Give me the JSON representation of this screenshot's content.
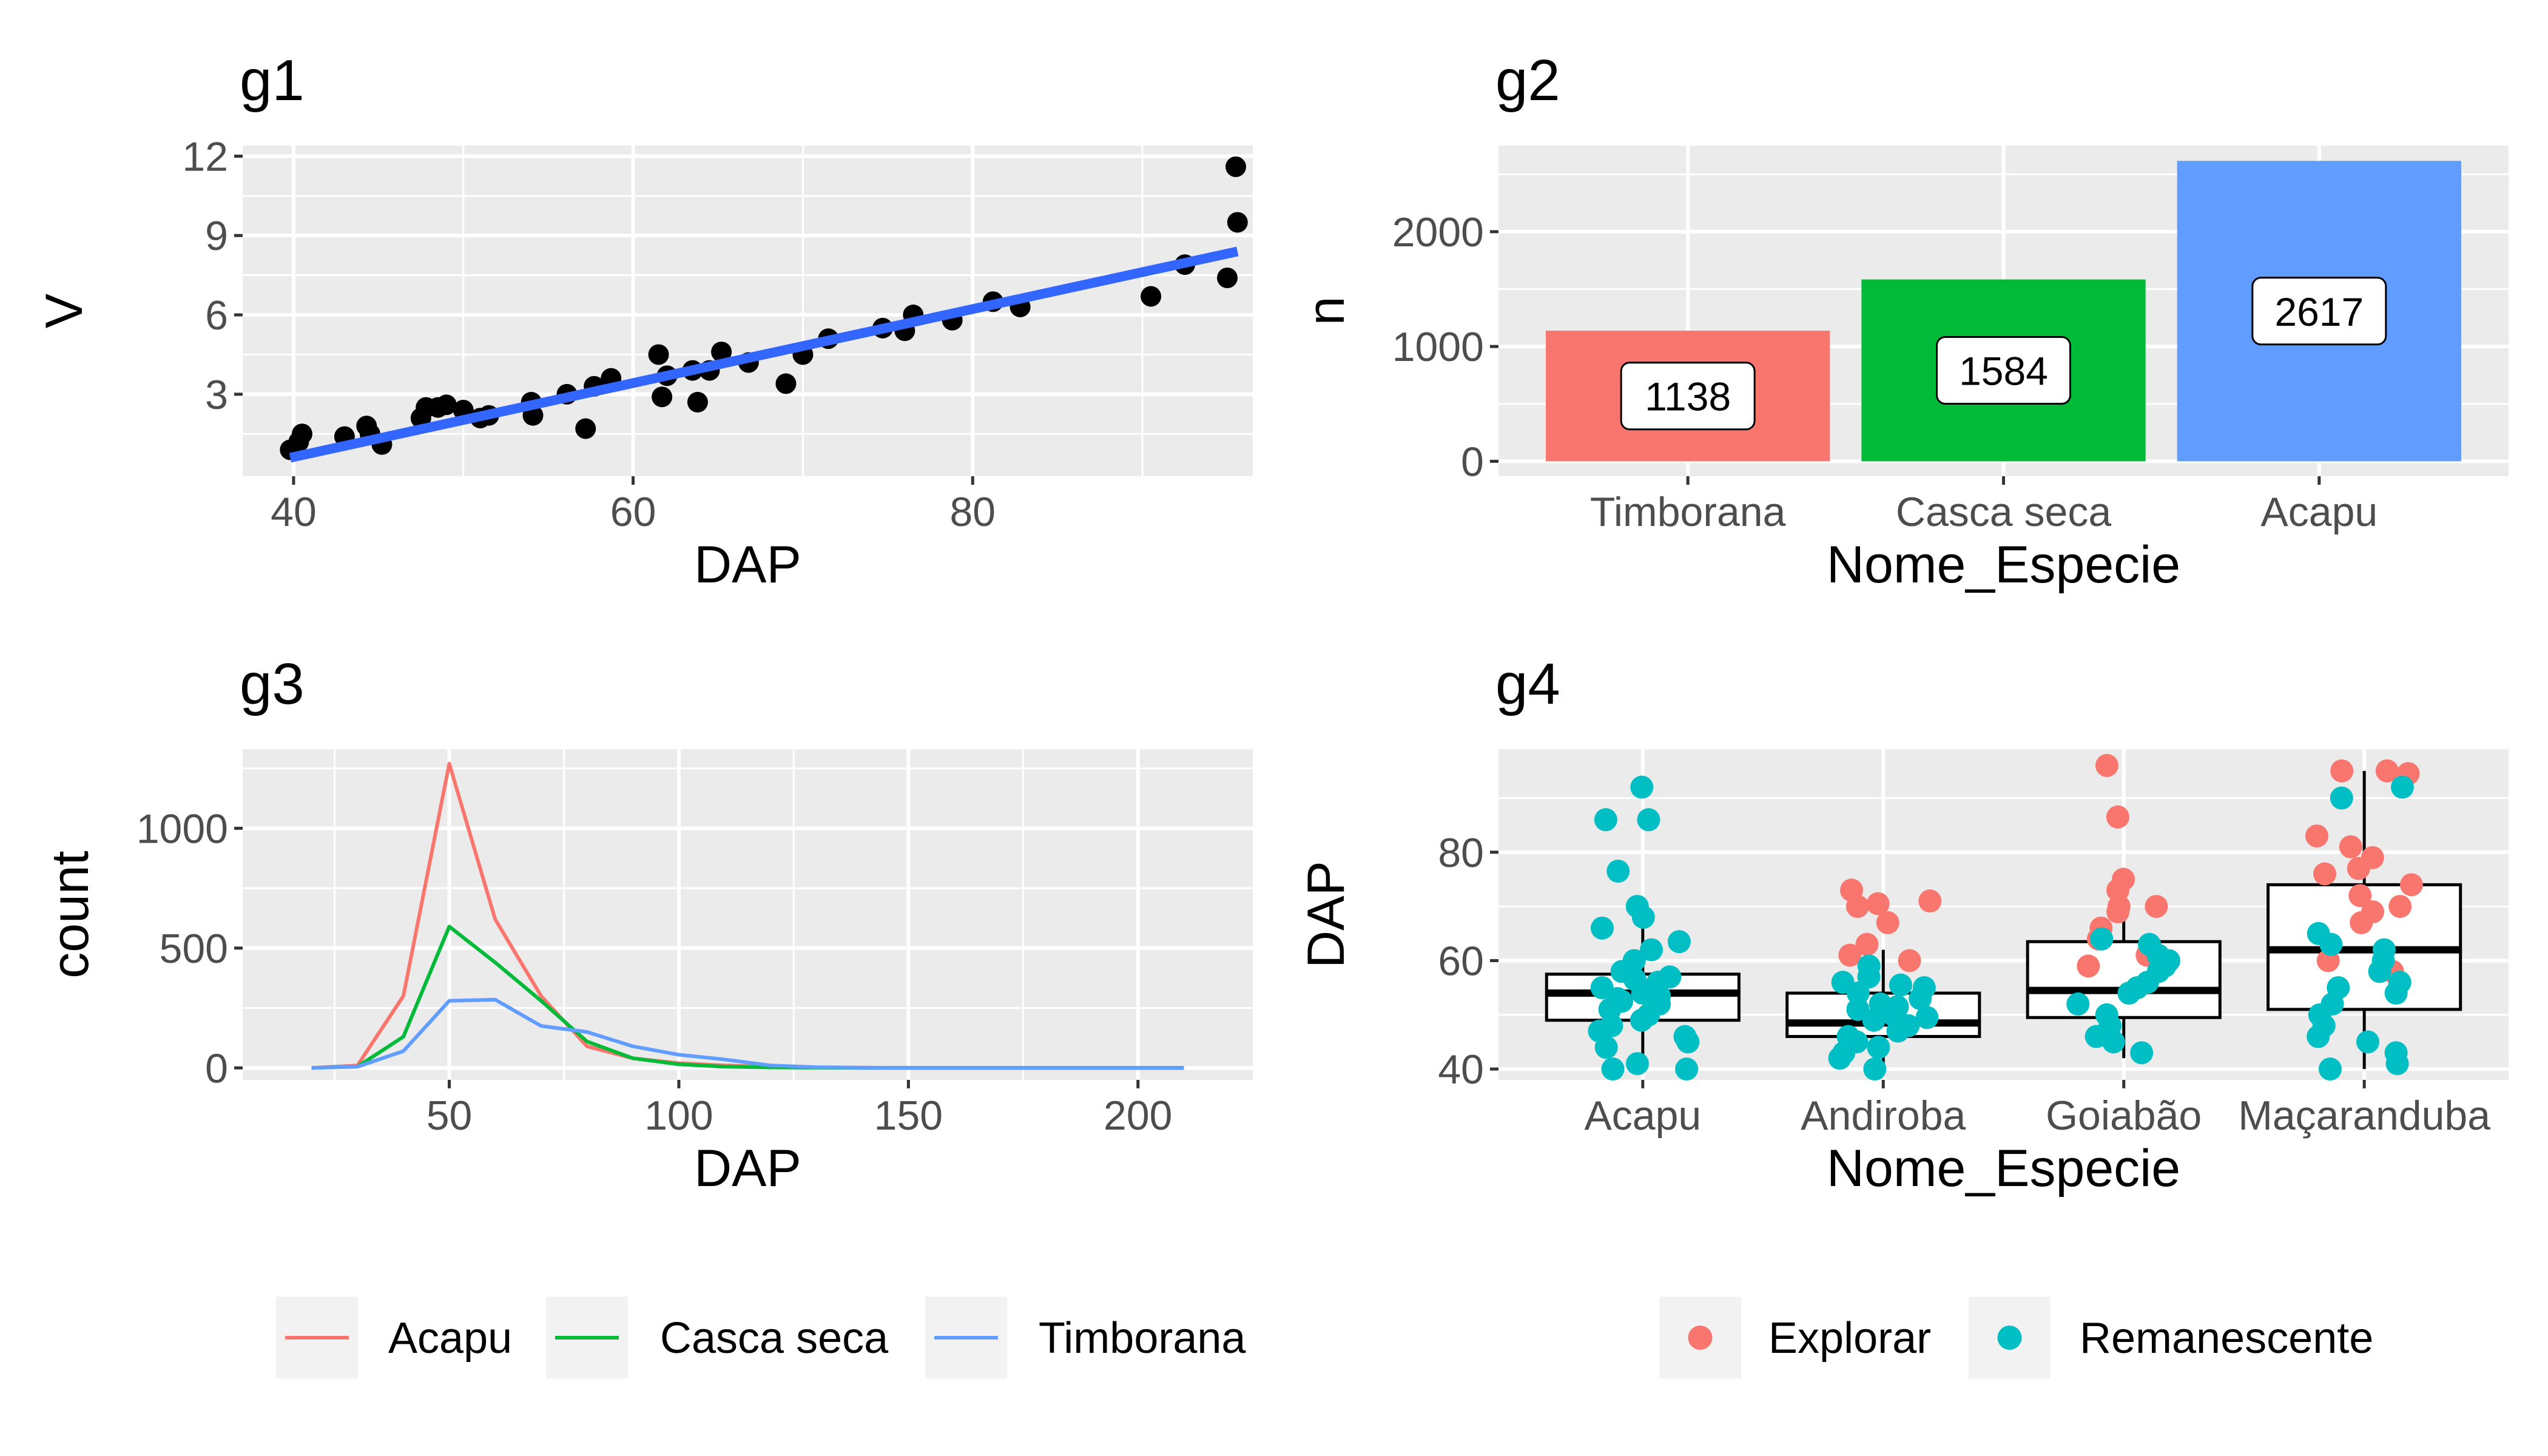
{
  "chart_data": [
    {
      "id": "g1",
      "type": "scatter",
      "title": "g1",
      "xlabel": "DAP",
      "ylabel": "V",
      "xlim": [
        37,
        96.5
      ],
      "ylim": [
        -0.1,
        12.4
      ],
      "xticks": [
        40,
        60,
        80
      ],
      "yticks": [
        3,
        6,
        9,
        12
      ],
      "grid": true,
      "points": [
        [
          39.8,
          0.9
        ],
        [
          40.3,
          1.2
        ],
        [
          40.5,
          1.5
        ],
        [
          43.0,
          1.4
        ],
        [
          44.3,
          1.8
        ],
        [
          44.5,
          1.5
        ],
        [
          45.2,
          1.1
        ],
        [
          47.5,
          2.1
        ],
        [
          47.8,
          2.5
        ],
        [
          48.5,
          2.5
        ],
        [
          49.0,
          2.6
        ],
        [
          50.0,
          2.4
        ],
        [
          51.0,
          2.1
        ],
        [
          51.5,
          2.2
        ],
        [
          54.0,
          2.7
        ],
        [
          54.1,
          2.2
        ],
        [
          56.1,
          3.0
        ],
        [
          57.2,
          1.7
        ],
        [
          57.7,
          3.3
        ],
        [
          58.7,
          3.6
        ],
        [
          61.5,
          4.5
        ],
        [
          61.7,
          2.9
        ],
        [
          62.0,
          3.7
        ],
        [
          63.5,
          3.9
        ],
        [
          63.8,
          2.7
        ],
        [
          64.5,
          3.9
        ],
        [
          65.2,
          4.6
        ],
        [
          66.8,
          4.2
        ],
        [
          69.0,
          3.4
        ],
        [
          70.0,
          4.5
        ],
        [
          71.5,
          5.1
        ],
        [
          74.7,
          5.5
        ],
        [
          76.0,
          5.4
        ],
        [
          76.5,
          6.0
        ],
        [
          78.8,
          5.8
        ],
        [
          81.2,
          6.5
        ],
        [
          82.8,
          6.3
        ],
        [
          90.5,
          6.7
        ],
        [
          92.5,
          7.9
        ],
        [
          95.0,
          7.4
        ],
        [
          95.5,
          11.6
        ],
        [
          95.6,
          9.5
        ]
      ],
      "fit_line": {
        "x": [
          39.8,
          95.6
        ],
        "y": [
          0.6,
          8.4
        ],
        "color": "#3366FF"
      }
    },
    {
      "id": "g2",
      "type": "bar",
      "title": "g2",
      "xlabel": "Nome_Especie",
      "ylabel": "n",
      "categories": [
        "Timborana",
        "Casca seca",
        "Acapu"
      ],
      "values": [
        1138,
        1584,
        2617
      ],
      "labels": [
        "1138",
        "1584",
        "2617"
      ],
      "colors": [
        "#F8766D",
        "#00BA38",
        "#619CFF"
      ],
      "ylim": [
        -130,
        2750
      ],
      "yticks": [
        0,
        1000,
        2000
      ],
      "grid": true
    },
    {
      "id": "g3",
      "type": "line",
      "title": "g3",
      "xlabel": "DAP",
      "ylabel": "count",
      "xlim": [
        5,
        225
      ],
      "ylim": [
        -50,
        1330
      ],
      "xticks": [
        50,
        100,
        150,
        200
      ],
      "yticks": [
        0,
        500,
        1000
      ],
      "grid": true,
      "series": [
        {
          "name": "Acapu",
          "color": "#F8766D",
          "x": [
            20,
            30,
            40,
            50,
            60,
            70,
            80,
            90,
            100,
            110,
            120,
            130,
            140,
            150,
            160,
            170,
            180,
            190,
            200,
            210
          ],
          "y": [
            0,
            10,
            300,
            1270,
            620,
            300,
            90,
            40,
            20,
            10,
            5,
            2,
            1,
            0,
            0,
            0,
            0,
            0,
            0,
            0
          ]
        },
        {
          "name": "Casca seca",
          "color": "#00BA38",
          "x": [
            20,
            30,
            40,
            50,
            60,
            70,
            80,
            90,
            100,
            110,
            120,
            130,
            140,
            150,
            160,
            170,
            180,
            190,
            200,
            210
          ],
          "y": [
            0,
            5,
            130,
            590,
            440,
            280,
            110,
            40,
            15,
            5,
            2,
            1,
            0,
            0,
            0,
            0,
            0,
            0,
            0,
            0
          ]
        },
        {
          "name": "Timborana",
          "color": "#619CFF",
          "x": [
            20,
            30,
            40,
            50,
            60,
            70,
            80,
            90,
            100,
            110,
            120,
            130,
            140,
            150,
            160,
            170,
            180,
            190,
            200,
            210
          ],
          "y": [
            0,
            5,
            70,
            280,
            285,
            175,
            150,
            90,
            55,
            35,
            10,
            3,
            1,
            0,
            0,
            0,
            0,
            0,
            0,
            0
          ]
        }
      ],
      "legend": {
        "position": "bottom"
      }
    },
    {
      "id": "g4",
      "type": "box",
      "title": "g4",
      "xlabel": "Nome_Especie",
      "ylabel": "DAP",
      "categories": [
        "Acapu",
        "Andiroba",
        "Goiabão",
        "Maçaranduba"
      ],
      "ylim": [
        38,
        99
      ],
      "yticks": [
        40,
        60,
        80
      ],
      "grid": true,
      "boxes": [
        {
          "min": 40,
          "q1": 49,
          "median": 54,
          "q3": 57.5,
          "max": 66
        },
        {
          "min": 40,
          "q1": 46,
          "median": 48.5,
          "q3": 54,
          "max": 62
        },
        {
          "min": 42,
          "q1": 49.5,
          "median": 54.5,
          "q3": 63.5,
          "max": 71
        },
        {
          "min": 40,
          "q1": 51,
          "median": 62,
          "q3": 74,
          "max": 95
        }
      ],
      "groups": [
        {
          "name": "Explorar",
          "color": "#F8766D"
        },
        {
          "name": "Remanescente",
          "color": "#00BFC4"
        }
      ],
      "points": [
        [
          0,
          92,
          1
        ],
        [
          0,
          86,
          1
        ],
        [
          0,
          86,
          1
        ],
        [
          0,
          76.5,
          1
        ],
        [
          0,
          70,
          1
        ],
        [
          0,
          68,
          1
        ],
        [
          0,
          66,
          1
        ],
        [
          0,
          63.5,
          1
        ],
        [
          0,
          62,
          1
        ],
        [
          0,
          60,
          1
        ],
        [
          0,
          58,
          1
        ],
        [
          0,
          57,
          1
        ],
        [
          0,
          56,
          1
        ],
        [
          0,
          55,
          1
        ],
        [
          0,
          54,
          1
        ],
        [
          0,
          53,
          1
        ],
        [
          0,
          52,
          1
        ],
        [
          0,
          51,
          1
        ],
        [
          0,
          50,
          1
        ],
        [
          0,
          49,
          1
        ],
        [
          0,
          48,
          1
        ],
        [
          0,
          47,
          1
        ],
        [
          0,
          46,
          1
        ],
        [
          0,
          45,
          1
        ],
        [
          0,
          44,
          1
        ],
        [
          0,
          41,
          1
        ],
        [
          0,
          40,
          1
        ],
        [
          0,
          40,
          1
        ],
        [
          0,
          56.5,
          1
        ],
        [
          0,
          54.5,
          1
        ],
        [
          0,
          53.5,
          1
        ],
        [
          0,
          52.5,
          1
        ],
        [
          1,
          73,
          0
        ],
        [
          1,
          71,
          0
        ],
        [
          1,
          70.5,
          0
        ],
        [
          1,
          70,
          0
        ],
        [
          1,
          67,
          0
        ],
        [
          1,
          63,
          0
        ],
        [
          1,
          61,
          0
        ],
        [
          1,
          60,
          0
        ],
        [
          1,
          59,
          1
        ],
        [
          1,
          57,
          1
        ],
        [
          1,
          56,
          1
        ],
        [
          1,
          55,
          1
        ],
        [
          1,
          54,
          1
        ],
        [
          1,
          53,
          1
        ],
        [
          1,
          52,
          1
        ],
        [
          1,
          51,
          1
        ],
        [
          1,
          50,
          1
        ],
        [
          1,
          49,
          1
        ],
        [
          1,
          48,
          1
        ],
        [
          1,
          47,
          1
        ],
        [
          1,
          46,
          1
        ],
        [
          1,
          45,
          1
        ],
        [
          1,
          44,
          1
        ],
        [
          1,
          43,
          1
        ],
        [
          1,
          42,
          1
        ],
        [
          1,
          40,
          1
        ],
        [
          1,
          55.5,
          1
        ],
        [
          1,
          51.5,
          1
        ],
        [
          1,
          49.5,
          1
        ],
        [
          2,
          96,
          0
        ],
        [
          2,
          86.5,
          0
        ],
        [
          2,
          75,
          0
        ],
        [
          2,
          73,
          0
        ],
        [
          2,
          70,
          0
        ],
        [
          2,
          70,
          0
        ],
        [
          2,
          69,
          0
        ],
        [
          2,
          66,
          0
        ],
        [
          2,
          64,
          0
        ],
        [
          2,
          61,
          0
        ],
        [
          2,
          59,
          0
        ],
        [
          2,
          64,
          1
        ],
        [
          2,
          63,
          1
        ],
        [
          2,
          61,
          1
        ],
        [
          2,
          60,
          1
        ],
        [
          2,
          59,
          1
        ],
        [
          2,
          58,
          1
        ],
        [
          2,
          56,
          1
        ],
        [
          2,
          55,
          1
        ],
        [
          2,
          54,
          1
        ],
        [
          2,
          52,
          1
        ],
        [
          2,
          50,
          1
        ],
        [
          2,
          48,
          1
        ],
        [
          2,
          46,
          1
        ],
        [
          2,
          45,
          1
        ],
        [
          2,
          43,
          1
        ],
        [
          3,
          95,
          0
        ],
        [
          3,
          95,
          0
        ],
        [
          3,
          94.5,
          0
        ],
        [
          3,
          83,
          0
        ],
        [
          3,
          81,
          0
        ],
        [
          3,
          79,
          0
        ],
        [
          3,
          77,
          0
        ],
        [
          3,
          76,
          0
        ],
        [
          3,
          74,
          0
        ],
        [
          3,
          72,
          0
        ],
        [
          3,
          70,
          0
        ],
        [
          3,
          69,
          0
        ],
        [
          3,
          67,
          0
        ],
        [
          3,
          60,
          0
        ],
        [
          3,
          58,
          0
        ],
        [
          3,
          92,
          1
        ],
        [
          3,
          90,
          1
        ],
        [
          3,
          65,
          1
        ],
        [
          3,
          63,
          1
        ],
        [
          3,
          62,
          1
        ],
        [
          3,
          60,
          1
        ],
        [
          3,
          58,
          1
        ],
        [
          3,
          56,
          1
        ],
        [
          3,
          55,
          1
        ],
        [
          3,
          54,
          1
        ],
        [
          3,
          52,
          1
        ],
        [
          3,
          50,
          1
        ],
        [
          3,
          48,
          1
        ],
        [
          3,
          46,
          1
        ],
        [
          3,
          45,
          1
        ],
        [
          3,
          43,
          1
        ],
        [
          3,
          41,
          1
        ],
        [
          3,
          40,
          1
        ]
      ],
      "legend": {
        "position": "bottom"
      }
    }
  ]
}
